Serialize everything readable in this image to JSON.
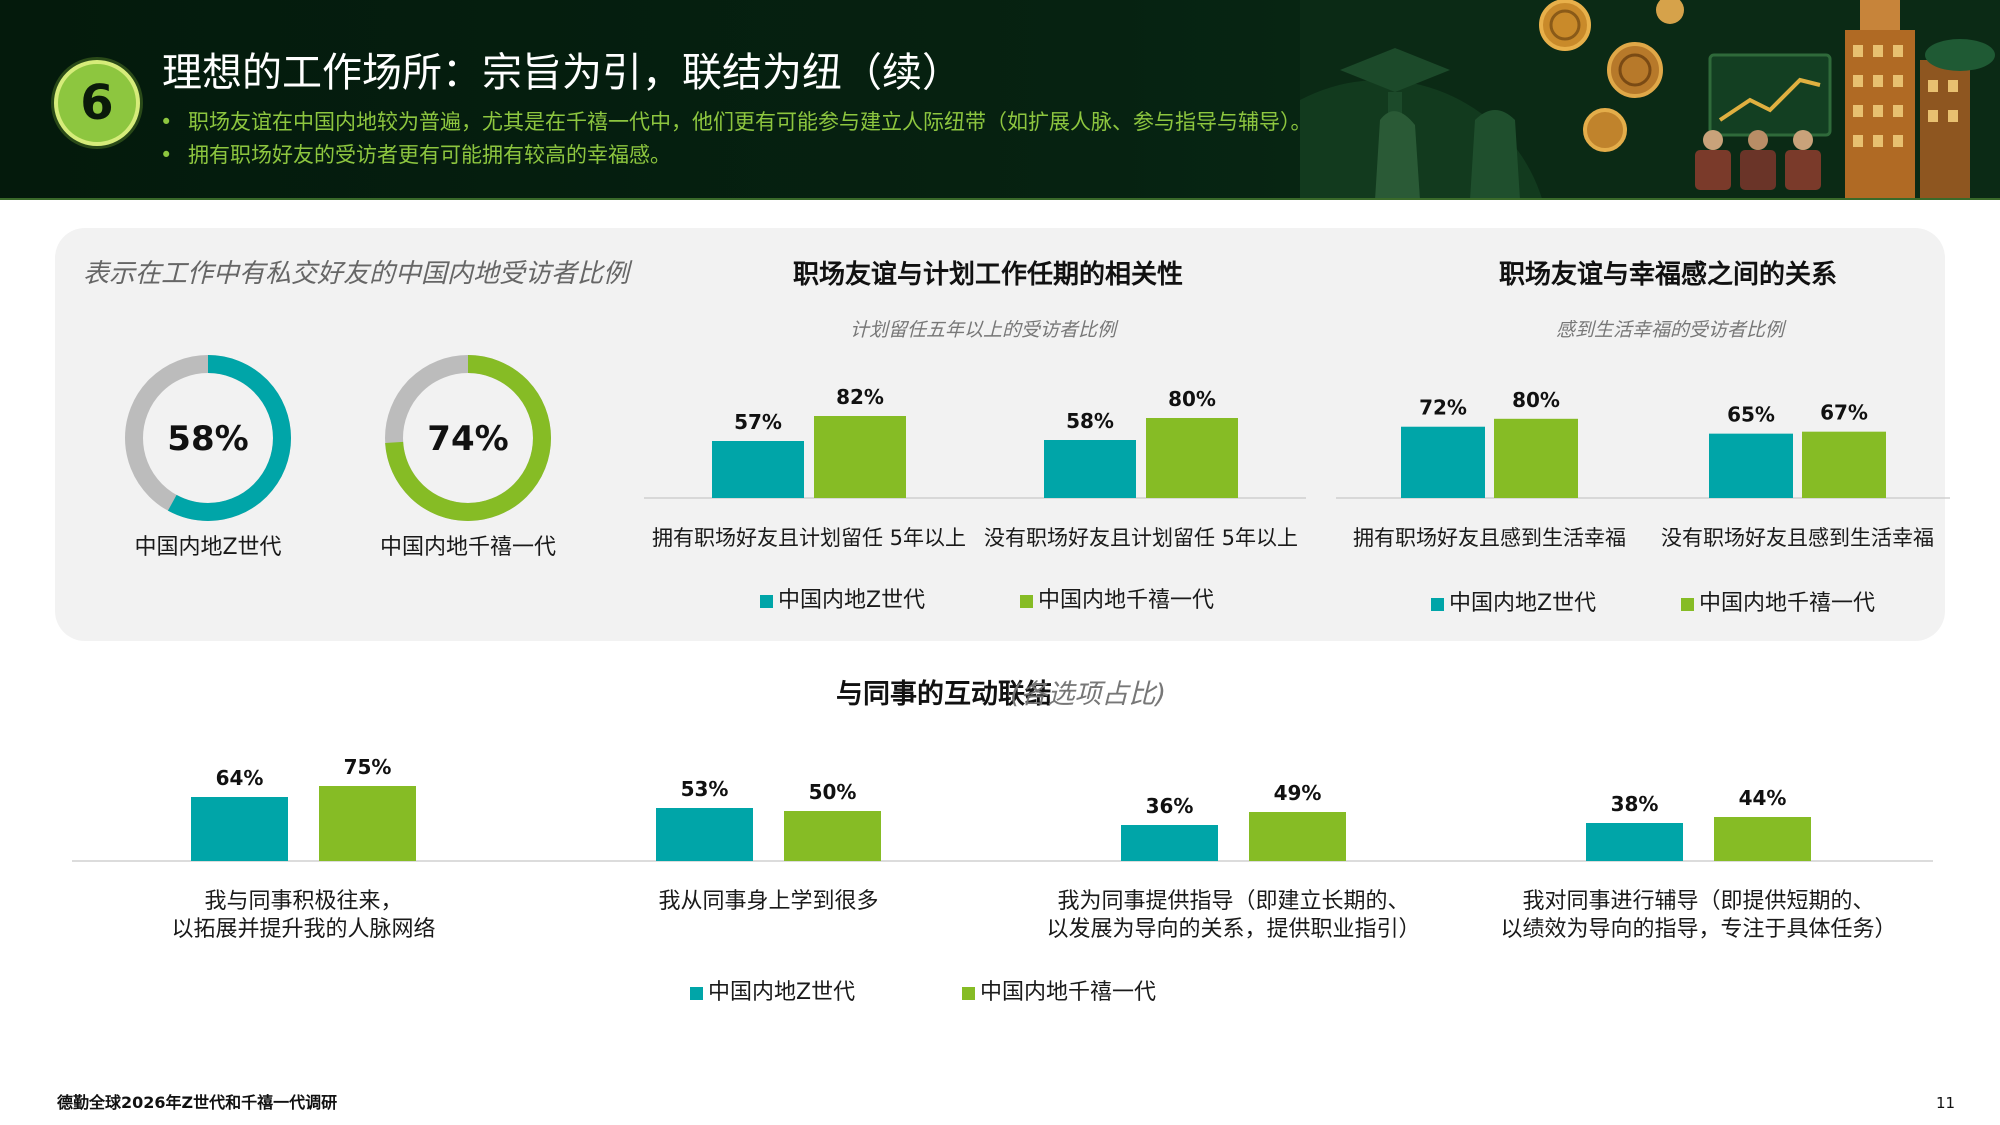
{
  "header": {
    "section_number": "6",
    "title": "理想的工作场所：宗旨为引，联结为纽（续）",
    "bullets": [
      "职场友谊在中国内地较为普遍，尤其是在千禧一代中，他们更有可能参与建立人际纽带（如扩展人脉、参与指导与辅导）。",
      "拥有职场好友的受访者更有可能拥有较高的幸福感。"
    ]
  },
  "colors": {
    "genz": "#00a5a8",
    "millennial": "#86bc25",
    "donut_rest": "#bcbcbc",
    "panel": "#f2f2f2"
  },
  "legend": {
    "genz": "中国内地Z世代",
    "millennial": "中国内地千禧一代"
  },
  "chart_data": [
    {
      "type": "pie",
      "title": "表示在工作中有私交好友的中国内地受访者比例",
      "items": [
        {
          "label": "中国内地Z世代",
          "value": 58,
          "display": "58%",
          "color": "#00a5a8"
        },
        {
          "label": "中国内地千禧一代",
          "value": 74,
          "display": "74%",
          "color": "#86bc25"
        }
      ]
    },
    {
      "type": "bar",
      "title": "职场友谊与计划工作任期的相关性",
      "subtitle": "计划留任五年以上的受访者比例",
      "categories": [
        "拥有职场好友且计划留任 5年以上",
        "没有职场好友且计划留任 5年以上"
      ],
      "series": [
        {
          "name": "中国内地Z世代",
          "values": [
            57,
            58
          ],
          "labels": [
            "57%",
            "58%"
          ]
        },
        {
          "name": "中国内地千禧一代",
          "values": [
            82,
            80
          ],
          "labels": [
            "82%",
            "80%"
          ]
        }
      ],
      "ylim": [
        0,
        100
      ]
    },
    {
      "type": "bar",
      "title": "职场友谊与幸福感之间的关系",
      "subtitle": "感到生活幸福的受访者比例",
      "categories": [
        "拥有职场好友且感到生活幸福",
        "没有职场好友且感到生活幸福"
      ],
      "series": [
        {
          "name": "中国内地Z世代",
          "values": [
            72,
            65
          ],
          "labels": [
            "72%",
            "65%"
          ]
        },
        {
          "name": "中国内地千禧一代",
          "values": [
            80,
            67
          ],
          "labels": [
            "80%",
            "67%"
          ]
        }
      ],
      "ylim": [
        0,
        100
      ]
    },
    {
      "type": "bar",
      "title": "与同事的互动联结",
      "title_note": "(各选项占比)",
      "categories": [
        [
          "我与同事积极往来，",
          "以拓展并提升我的人脉网络"
        ],
        [
          "我从同事身上学到很多"
        ],
        [
          "我为同事提供指导（即建立长期的、",
          "以发展为导向的关系，提供职业指引）"
        ],
        [
          "我对同事进行辅导（即提供短期的、",
          "以绩效为导向的指导，专注于具体任务）"
        ]
      ],
      "series": [
        {
          "name": "中国内地Z世代",
          "values": [
            64,
            53,
            36,
            38
          ],
          "labels": [
            "64%",
            "53%",
            "36%",
            "38%"
          ]
        },
        {
          "name": "中国内地千禧一代",
          "values": [
            75,
            50,
            49,
            44
          ],
          "labels": [
            "75%",
            "50%",
            "49%",
            "44%"
          ]
        }
      ],
      "ylim": [
        0,
        100
      ]
    }
  ],
  "footer": {
    "text": "德勤全球2026年Z世代和千禧一代调研",
    "page": "11"
  }
}
